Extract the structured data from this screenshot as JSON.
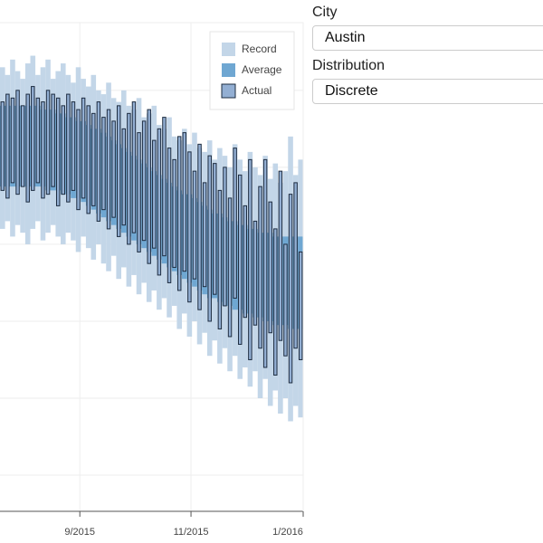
{
  "chart_data": {
    "type": "range-bar",
    "categories": [
      null,
      null,
      null,
      null,
      null,
      null,
      null,
      null,
      null,
      null,
      null,
      null,
      null,
      null,
      null,
      null,
      null,
      null,
      null,
      null,
      null,
      null,
      null,
      null,
      null,
      null,
      null,
      null,
      null,
      null,
      null,
      null,
      null,
      null,
      null,
      null,
      null,
      null,
      null,
      null,
      null,
      null,
      null,
      null,
      null,
      null,
      null,
      null,
      null,
      null,
      null,
      null,
      null,
      null,
      null,
      null,
      null,
      null,
      null,
      null
    ],
    "series": [
      {
        "name": "Record",
        "color": "#c3d6e8",
        "high": [
          106,
          104,
          108,
          105,
          103,
          107,
          109,
          104,
          106,
          108,
          103,
          105,
          107,
          104,
          102,
          106,
          103,
          101,
          104,
          100,
          99,
          102,
          98,
          97,
          100,
          96,
          95,
          98,
          93,
          94,
          96,
          91,
          90,
          93,
          88,
          87,
          90,
          86,
          89,
          85,
          84,
          87,
          82,
          85,
          83,
          80,
          86,
          82,
          79,
          84,
          80,
          78,
          83,
          77,
          81,
          76,
          79,
          88,
          78,
          82
        ],
        "low": [
          64,
          66,
          62,
          65,
          63,
          60,
          64,
          66,
          61,
          63,
          65,
          62,
          60,
          63,
          61,
          58,
          62,
          59,
          56,
          60,
          55,
          53,
          57,
          51,
          54,
          49,
          52,
          47,
          50,
          45,
          48,
          43,
          46,
          41,
          44,
          38,
          42,
          36,
          40,
          34,
          37,
          31,
          35,
          29,
          33,
          27,
          31,
          25,
          28,
          23,
          27,
          20,
          25,
          18,
          22,
          16,
          20,
          14,
          18,
          15
        ]
      },
      {
        "name": "Average",
        "color": "#6fa7d2",
        "high": [
          96,
          96,
          96,
          96,
          96,
          96,
          96,
          96,
          95,
          95,
          95,
          94,
          94,
          93,
          93,
          92,
          92,
          91,
          90,
          90,
          89,
          88,
          87,
          86,
          85,
          84,
          83,
          82,
          81,
          80,
          79,
          78,
          77,
          76,
          75,
          74,
          73,
          73,
          72,
          71,
          70,
          69,
          68,
          68,
          67,
          66,
          66,
          65,
          65,
          64,
          64,
          63,
          63,
          63,
          62,
          62,
          62,
          62,
          62,
          62
        ],
        "low": [
          75,
          75,
          75,
          75,
          75,
          75,
          75,
          75,
          75,
          74,
          74,
          74,
          73,
          73,
          72,
          72,
          71,
          70,
          69,
          68,
          67,
          66,
          65,
          64,
          63,
          62,
          61,
          60,
          59,
          58,
          57,
          56,
          55,
          54,
          53,
          52,
          51,
          50,
          49,
          48,
          47,
          46,
          46,
          45,
          44,
          44,
          43,
          43,
          42,
          42,
          41,
          41,
          40,
          40,
          39,
          39,
          39,
          38,
          38,
          38
        ]
      },
      {
        "name": "Actual",
        "color": "#93afd3",
        "high": [
          97,
          99,
          98,
          100,
          96,
          99,
          101,
          98,
          97,
          100,
          99,
          98,
          96,
          99,
          97,
          95,
          98,
          96,
          94,
          97,
          93,
          95,
          92,
          96,
          90,
          94,
          97,
          89,
          92,
          95,
          87,
          90,
          93,
          85,
          82,
          88,
          89,
          84,
          79,
          86,
          76,
          83,
          81,
          74,
          80,
          72,
          85,
          78,
          70,
          82,
          66,
          75,
          82,
          71,
          64,
          79,
          60,
          73,
          76,
          58
        ],
        "low": [
          74,
          72,
          76,
          73,
          75,
          71,
          74,
          76,
          72,
          73,
          75,
          70,
          73,
          71,
          74,
          69,
          72,
          68,
          70,
          66,
          69,
          64,
          67,
          62,
          65,
          60,
          63,
          58,
          61,
          55,
          59,
          52,
          57,
          50,
          54,
          48,
          53,
          45,
          51,
          43,
          49,
          40,
          47,
          38,
          44,
          36,
          46,
          34,
          41,
          30,
          39,
          33,
          28,
          37,
          26,
          35,
          31,
          24,
          33,
          30
        ]
      }
    ],
    "ylim": [
      -9.4,
      117.6
    ],
    "yticks": [
      0,
      20,
      40,
      60,
      80,
      100
    ],
    "xlim": [
      -0.5,
      59.5
    ],
    "xticks": [
      {
        "value": 15.3,
        "label": "9/2015"
      },
      {
        "value": 37.3,
        "label": "11/2015"
      },
      {
        "value": 59.5,
        "label": "1/2016"
      }
    ],
    "grid": true,
    "legend": "top-right"
  },
  "controls": [
    {
      "label": "City",
      "value": "Austin"
    },
    {
      "label": "Distribution",
      "value": "Discrete"
    }
  ]
}
